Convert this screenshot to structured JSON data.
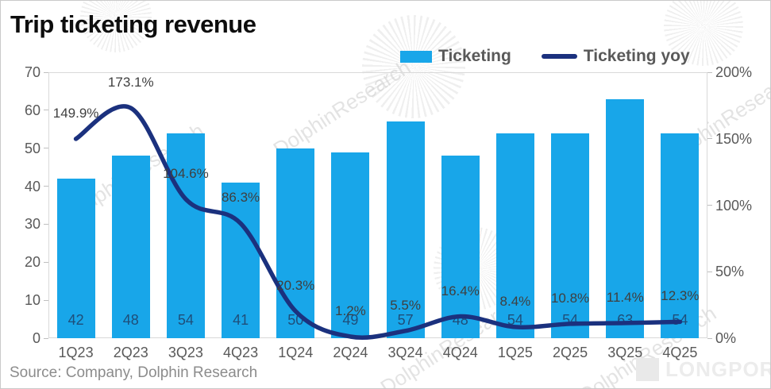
{
  "page": {
    "title": "Trip ticketing revenue",
    "source": "Source: Company, Dolphin Research",
    "watermark_text": "DolphinResearch",
    "brand_watermark": "LONGPORT"
  },
  "legend": {
    "items": [
      {
        "label": "Ticketing",
        "type": "bar",
        "color": "#18a6e9"
      },
      {
        "label": "Ticketing yoy",
        "type": "line",
        "color": "#1b317e"
      }
    ]
  },
  "colors": {
    "bar": "#18a6e9",
    "line": "#1b317e",
    "bar_value_label": "#1f4e79",
    "axis_text": "#595959",
    "yoy_label_text": "#3f3f3f",
    "plot_border": "#d9d9d9"
  },
  "chart_data": {
    "type": "combo",
    "title": "Trip ticketing revenue",
    "categories": [
      "1Q23",
      "2Q23",
      "3Q23",
      "4Q23",
      "1Q24",
      "2Q24",
      "3Q24",
      "4Q24",
      "1Q25",
      "2Q25",
      "3Q25",
      "4Q25"
    ],
    "series": [
      {
        "name": "Ticketing",
        "type": "bar",
        "axis": "left",
        "values": [
          42,
          48,
          54,
          41,
          50,
          49,
          57,
          48,
          54,
          54,
          63,
          54
        ],
        "color": "#18a6e9",
        "label_color": "#1f4e79"
      },
      {
        "name": "Ticketing yoy",
        "type": "line",
        "axis": "right",
        "values": [
          149.9,
          173.1,
          104.6,
          86.3,
          20.3,
          1.2,
          5.5,
          16.4,
          8.4,
          10.8,
          11.4,
          12.3
        ],
        "labels": [
          "149.9%",
          "173.1%",
          "104.6%",
          "86.3%",
          "20.3%",
          "1.2%",
          "5.5%",
          "16.4%",
          "8.4%",
          "10.8%",
          "11.4%",
          "12.3%"
        ],
        "color": "#1b317e",
        "label_color": "#3f3f3f"
      }
    ],
    "left_axis": {
      "min": 0,
      "max": 70,
      "ticks": [
        "0",
        "10",
        "20",
        "30",
        "40",
        "50",
        "60",
        "70"
      ]
    },
    "right_axis": {
      "min": 0,
      "max": 200,
      "ticks": [
        "0%",
        "50%",
        "100%",
        "150%",
        "200%"
      ]
    },
    "grid": false,
    "legend_position": "top-right"
  }
}
